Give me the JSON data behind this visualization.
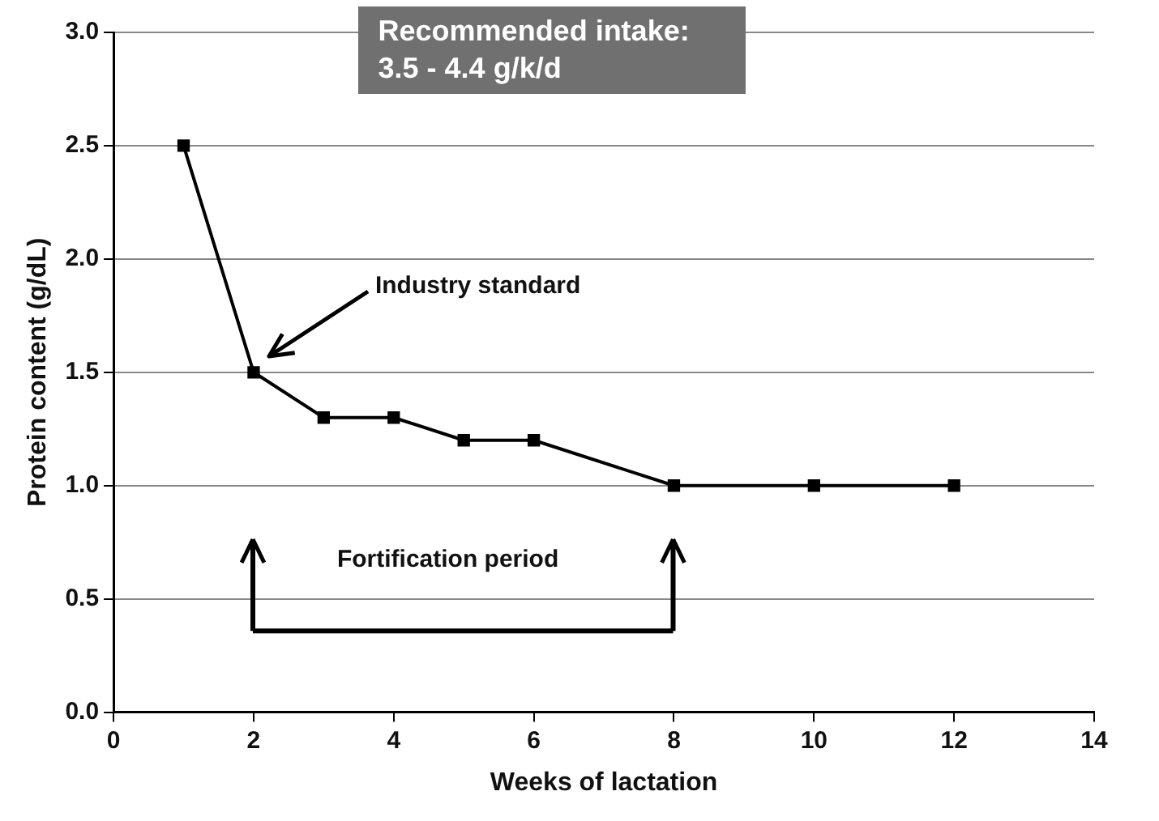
{
  "chart_data": {
    "type": "line",
    "xlabel": "Weeks of lactation",
    "ylabel": "Protein content (g/dL)",
    "x": [
      1,
      2,
      3,
      4,
      5,
      6,
      8,
      10,
      12
    ],
    "series": [
      {
        "color": "#000000",
        "values": [
          2.5,
          1.5,
          1.3,
          1.3,
          1.2,
          1.2,
          1.0,
          1.0,
          1.0
        ]
      }
    ],
    "xlim": [
      0,
      14
    ],
    "xticks": [
      0,
      2,
      4,
      6,
      8,
      10,
      12,
      14
    ],
    "ylim": [
      0,
      3
    ],
    "yticks": [
      {
        "value": 0,
        "label": "0.0"
      },
      {
        "value": 0.5,
        "label": "0.5"
      },
      {
        "value": 1,
        "label": "1.0"
      },
      {
        "value": 1.5,
        "label": "1.5"
      },
      {
        "value": 2,
        "label": "2.0"
      },
      {
        "value": 2.5,
        "label": "2.5"
      },
      {
        "value": 3,
        "label": "3.0"
      }
    ],
    "grid": "y",
    "legend": false,
    "marker": "square",
    "line_style": "solid",
    "annotations": [
      "Recommended intake: 3.5 - 4.4 g/k/d",
      "Industry standard",
      "Fortification period"
    ]
  }
}
